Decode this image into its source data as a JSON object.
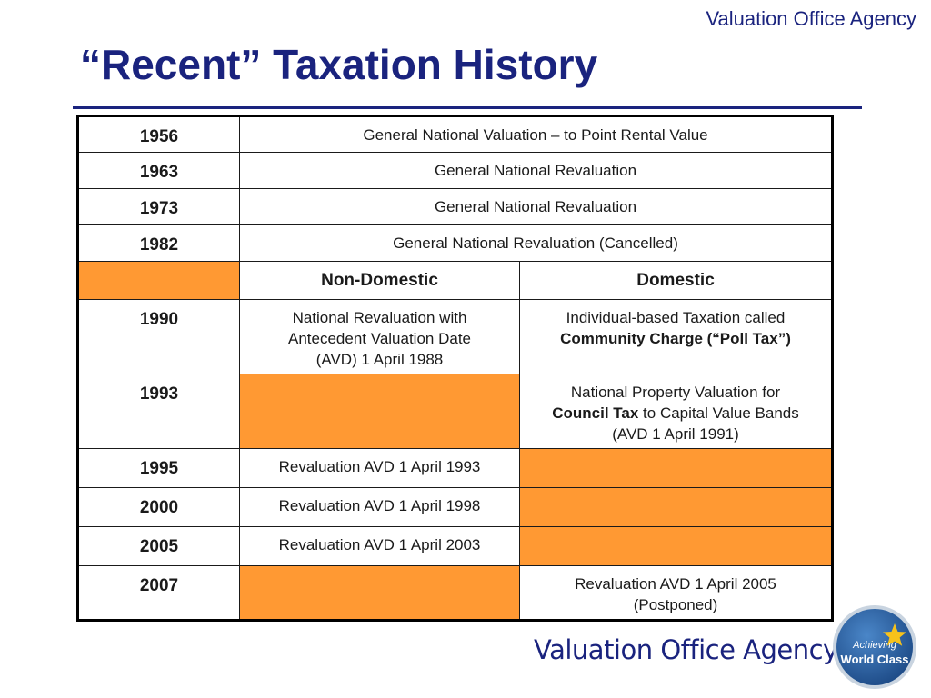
{
  "header": {
    "agency": "Valuation Office Agency",
    "title": "“Recent” Taxation History"
  },
  "table": {
    "rows": [
      {
        "year": "1956",
        "text": "General National Valuation – to Point Rental Value"
      },
      {
        "year": "1963",
        "text": "General National Revaluation"
      },
      {
        "year": "1973",
        "text": "General National Revaluation"
      },
      {
        "year": "1982",
        "text": "General National Revaluation (Cancelled)"
      }
    ],
    "columns": {
      "non_domestic": "Non-Domestic",
      "domestic": "Domestic"
    },
    "split_rows": [
      {
        "year": "1990",
        "non_domestic": [
          "National Revaluation with",
          "Antecedent Valuation Date",
          "(AVD) 1 April 1988"
        ],
        "domestic": {
          "line1": "Individual-based Taxation called",
          "line2_bold": "Community Charge (“Poll Tax”)"
        }
      },
      {
        "year": "1993",
        "non_domestic": null,
        "domestic": {
          "line1": "National Property Valuation for",
          "line2_bold": "Council Tax",
          "line2_rest": " to Capital Value Bands",
          "line3": "(AVD 1 April 1991)"
        }
      },
      {
        "year": "1995",
        "non_domestic": "Revaluation AVD 1 April 1993",
        "domestic": null
      },
      {
        "year": "2000",
        "non_domestic": "Revaluation AVD 1 April 1998",
        "domestic": null
      },
      {
        "year": "2005",
        "non_domestic": "Revaluation AVD 1 April 2003",
        "domestic": null
      },
      {
        "year": "2007",
        "non_domestic": null,
        "domestic": [
          "Revaluation AVD 1 April 2005",
          "(Postponed)"
        ]
      }
    ]
  },
  "footer": {
    "brand": "Valuation Office Agency",
    "badge_line1": "Achieving",
    "badge_line2": "World Class"
  },
  "colors": {
    "navy": "#1a237e",
    "highlight_orange": "#ff9933",
    "badge_blue": "#2c5f9e",
    "star_yellow": "#f7c21b"
  },
  "icons": {
    "badge_star": "star-icon"
  }
}
